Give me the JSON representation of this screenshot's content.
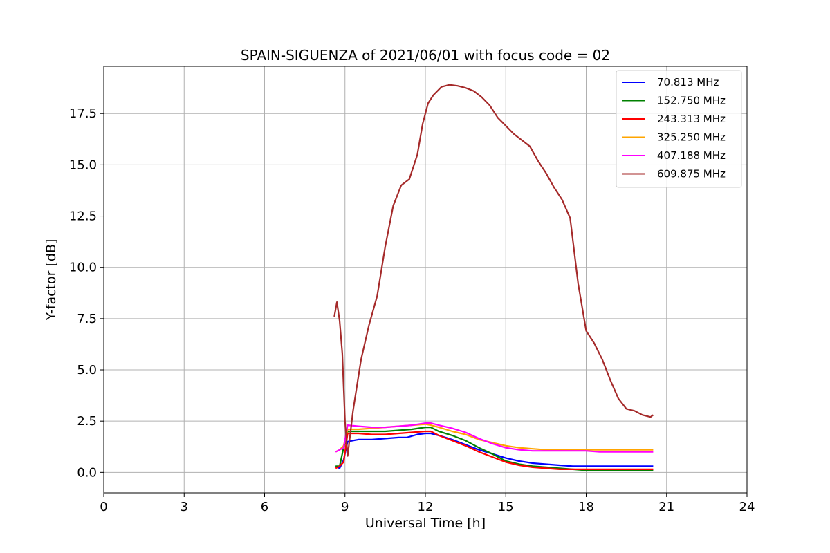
{
  "chart_data": {
    "type": "line",
    "title": "SPAIN-SIGUENZA of 2021/06/01 with focus code = 02",
    "xlabel": "Universal Time [h]",
    "ylabel": "Y-factor [dB]",
    "xlim": [
      0,
      24
    ],
    "ylim": [
      -1.0,
      19.8
    ],
    "xticks": [
      0,
      3,
      6,
      9,
      12,
      15,
      18,
      21,
      24
    ],
    "xtick_labels": [
      "0",
      "3",
      "6",
      "9",
      "12",
      "15",
      "18",
      "21",
      "24"
    ],
    "yticks": [
      0.0,
      2.5,
      5.0,
      7.5,
      10.0,
      12.5,
      15.0,
      17.5
    ],
    "ytick_labels": [
      "0.0",
      "2.5",
      "5.0",
      "7.5",
      "10.0",
      "12.5",
      "15.0",
      "17.5"
    ],
    "grid": true,
    "legend_position": "top-right",
    "series": [
      {
        "name": "70.813 MHz",
        "legend_label": " 70.813 MHz",
        "color": "#0000ff",
        "x": [
          8.65,
          8.8,
          8.95,
          9.1,
          9.5,
          10.0,
          10.5,
          11.0,
          11.3,
          11.7,
          12.0,
          12.2,
          12.5,
          13.0,
          13.5,
          14.0,
          14.5,
          15.0,
          15.5,
          16.0,
          16.5,
          17.0,
          17.5,
          18.0,
          18.5,
          19.0,
          19.5,
          20.0,
          20.5
        ],
        "y": [
          0.3,
          0.2,
          0.6,
          1.5,
          1.6,
          1.6,
          1.65,
          1.7,
          1.7,
          1.85,
          1.9,
          1.9,
          1.8,
          1.6,
          1.35,
          1.1,
          0.9,
          0.7,
          0.55,
          0.45,
          0.4,
          0.35,
          0.3,
          0.3,
          0.3,
          0.3,
          0.3,
          0.3,
          0.3
        ]
      },
      {
        "name": "152.750 MHz",
        "legend_label": "152.750 MHz",
        "color": "#008000",
        "x": [
          8.65,
          8.8,
          8.95,
          9.1,
          9.5,
          10.0,
          10.5,
          11.0,
          11.5,
          12.0,
          12.2,
          12.5,
          13.0,
          13.5,
          14.0,
          14.5,
          15.0,
          15.5,
          16.0,
          16.5,
          17.0,
          17.5,
          18.0,
          18.5,
          19.0,
          19.5,
          20.0,
          20.5
        ],
        "y": [
          0.3,
          0.3,
          1.2,
          2.0,
          2.0,
          2.0,
          2.0,
          2.05,
          2.1,
          2.2,
          2.2,
          2.0,
          1.8,
          1.55,
          1.2,
          0.9,
          0.55,
          0.4,
          0.3,
          0.25,
          0.2,
          0.15,
          0.1,
          0.1,
          0.1,
          0.1,
          0.1,
          0.1
        ]
      },
      {
        "name": "243.313 MHz",
        "legend_label": "243.313 MHz",
        "color": "#ff0000",
        "x": [
          8.65,
          8.8,
          8.95,
          9.1,
          9.5,
          10.0,
          10.5,
          11.0,
          11.5,
          12.0,
          12.2,
          12.5,
          13.0,
          13.5,
          14.0,
          14.5,
          15.0,
          15.5,
          16.0,
          16.5,
          17.0,
          17.5,
          18.0,
          18.5,
          19.0,
          19.5,
          20.0,
          20.5
        ],
        "y": [
          0.2,
          0.3,
          0.5,
          1.9,
          1.9,
          1.85,
          1.85,
          1.9,
          1.95,
          2.0,
          2.0,
          1.8,
          1.55,
          1.3,
          1.0,
          0.75,
          0.5,
          0.35,
          0.25,
          0.2,
          0.15,
          0.15,
          0.15,
          0.15,
          0.15,
          0.15,
          0.15,
          0.15
        ]
      },
      {
        "name": "325.250 MHz",
        "legend_label": "325.250 MHz",
        "color": "#ffa500",
        "x": [
          8.65,
          8.8,
          8.95,
          9.1,
          9.5,
          10.0,
          10.5,
          11.0,
          11.5,
          12.0,
          12.2,
          12.5,
          13.0,
          13.5,
          14.0,
          14.5,
          15.0,
          15.5,
          16.0,
          16.5,
          17.0,
          17.5,
          18.0,
          18.5,
          19.0,
          19.5,
          20.0,
          20.5
        ],
        "y": [
          1.0,
          1.1,
          1.3,
          2.1,
          2.1,
          2.15,
          2.2,
          2.25,
          2.3,
          2.35,
          2.3,
          2.2,
          2.0,
          1.85,
          1.6,
          1.45,
          1.3,
          1.2,
          1.15,
          1.1,
          1.1,
          1.1,
          1.1,
          1.1,
          1.1,
          1.1,
          1.1,
          1.1
        ]
      },
      {
        "name": "407.188 MHz",
        "legend_label": "407.188 MHz",
        "color": "#ff00ff",
        "x": [
          8.65,
          8.8,
          8.95,
          9.1,
          9.5,
          10.0,
          10.5,
          11.0,
          11.5,
          12.0,
          12.2,
          12.5,
          13.0,
          13.5,
          14.0,
          14.5,
          15.0,
          15.5,
          16.0,
          16.5,
          17.0,
          17.5,
          18.0,
          18.5,
          19.0,
          19.5,
          20.0,
          20.5
        ],
        "y": [
          1.0,
          1.1,
          1.2,
          2.3,
          2.25,
          2.2,
          2.2,
          2.25,
          2.3,
          2.4,
          2.4,
          2.3,
          2.15,
          1.95,
          1.65,
          1.4,
          1.2,
          1.1,
          1.05,
          1.05,
          1.05,
          1.05,
          1.05,
          1.0,
          1.0,
          1.0,
          1.0,
          1.0
        ]
      },
      {
        "name": "609.875 MHz",
        "legend_label": "609.875 MHz",
        "color": "#a52a2a",
        "x": [
          8.6,
          8.7,
          8.8,
          8.9,
          9.0,
          9.1,
          9.3,
          9.6,
          9.9,
          10.2,
          10.5,
          10.8,
          11.1,
          11.4,
          11.7,
          11.9,
          12.1,
          12.3,
          12.6,
          12.9,
          13.2,
          13.5,
          13.8,
          14.1,
          14.4,
          14.7,
          15.0,
          15.3,
          15.6,
          15.9,
          16.2,
          16.5,
          16.8,
          17.1,
          17.4,
          17.7,
          18.0,
          18.3,
          18.6,
          18.9,
          19.2,
          19.5,
          19.8,
          20.1,
          20.4,
          20.5
        ],
        "y": [
          7.6,
          8.3,
          7.4,
          5.8,
          2.5,
          0.8,
          3.0,
          5.5,
          7.2,
          8.6,
          11.0,
          13.0,
          14.0,
          14.3,
          15.5,
          17.0,
          18.0,
          18.4,
          18.8,
          18.9,
          18.85,
          18.75,
          18.6,
          18.3,
          17.9,
          17.3,
          16.9,
          16.5,
          16.2,
          15.9,
          15.2,
          14.6,
          13.9,
          13.3,
          12.4,
          9.2,
          6.9,
          6.3,
          5.5,
          4.5,
          3.6,
          3.1,
          3.0,
          2.8,
          2.7,
          2.8
        ]
      }
    ]
  }
}
